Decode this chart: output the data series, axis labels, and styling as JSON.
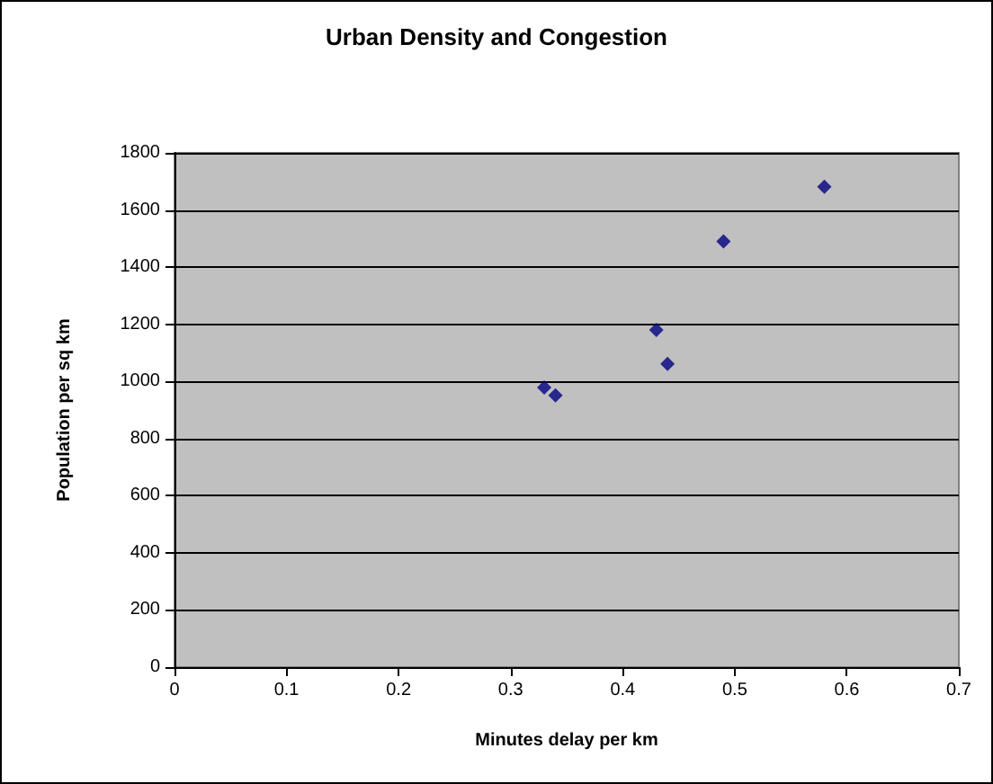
{
  "chart_data": {
    "type": "scatter",
    "title": "Urban Density and Congestion",
    "xlabel": "Minutes delay per km",
    "ylabel": "Population per sq km",
    "x": [
      0.33,
      0.34,
      0.43,
      0.44,
      0.49,
      0.58
    ],
    "values": [
      979,
      951,
      1180,
      1061,
      1490,
      1681
    ],
    "color": "#000080",
    "marker": "diamond",
    "xlim": [
      0,
      0.7
    ],
    "xticks": [
      0,
      0.1,
      0.2,
      0.3,
      0.4,
      0.5,
      0.6,
      0.7
    ],
    "ylim": [
      0,
      1800
    ],
    "yticks": [
      0,
      200,
      400,
      600,
      800,
      1000,
      1200,
      1400,
      1600,
      1800
    ],
    "grid": "y"
  }
}
